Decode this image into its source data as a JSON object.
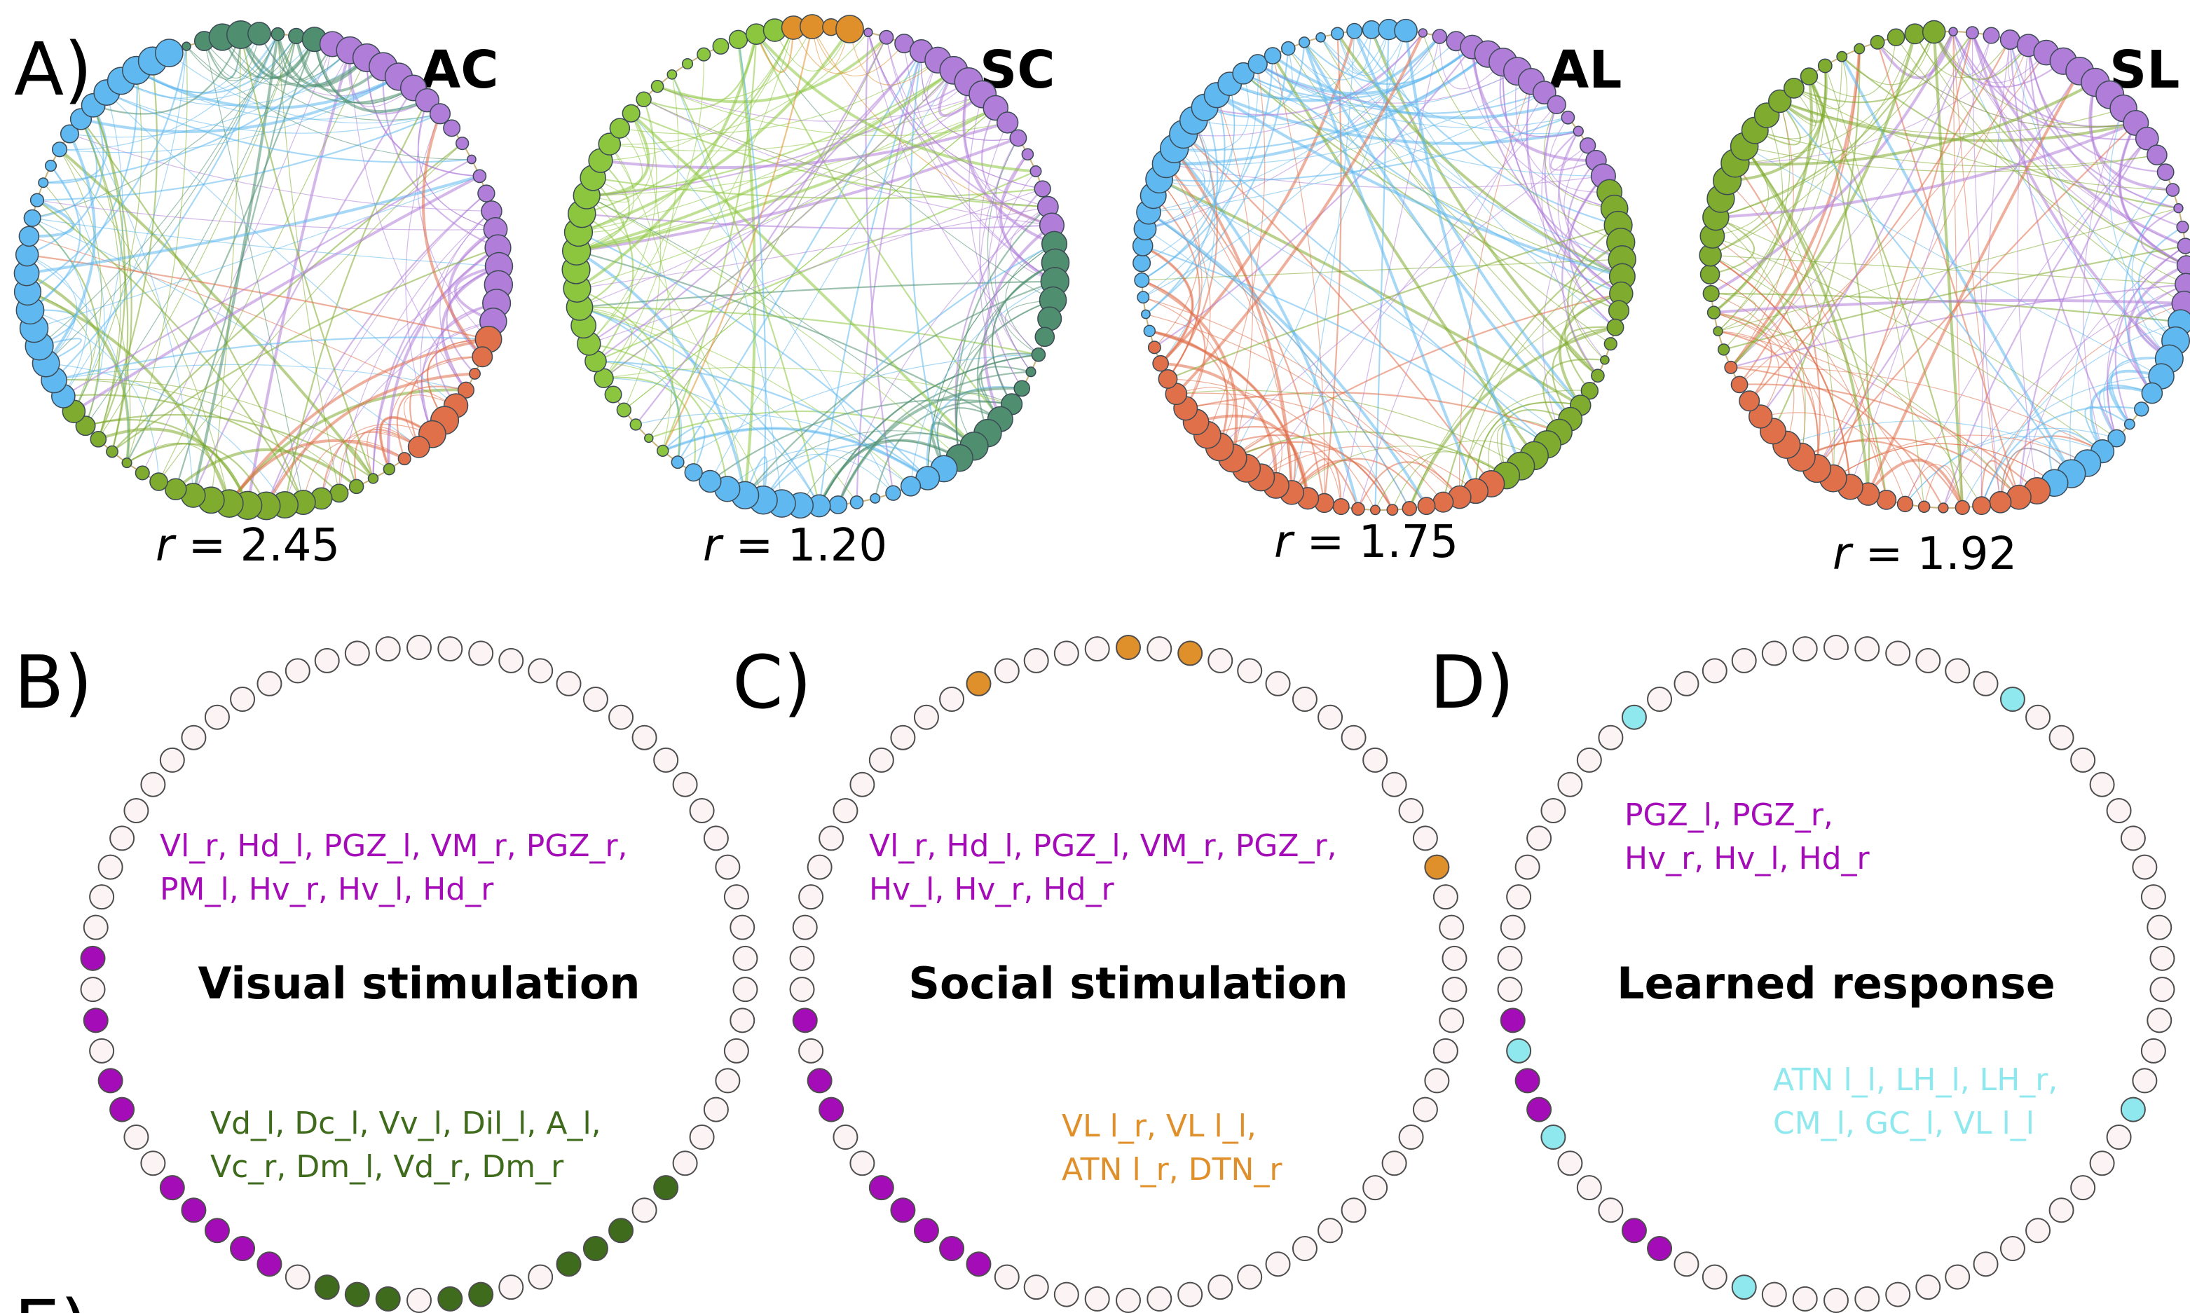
{
  "panels": {
    "A": {
      "label": "A)",
      "networks": [
        {
          "name": "AC",
          "r_label": "r",
          "r_value": "= 2.45",
          "groups": [
            {
              "color": "#4f8f6f",
              "count": 8
            },
            {
              "color": "#b07ed8",
              "count": 20
            },
            {
              "color": "#e0704a",
              "count": 9
            },
            {
              "color": "#7fab2e",
              "count": 20
            },
            {
              "color": "#5fb8ef",
              "count": 23
            }
          ]
        },
        {
          "name": "SC",
          "r_label": "r",
          "r_value": "= 1.20",
          "groups": [
            {
              "color": "#b07ed8",
              "count": 16
            },
            {
              "color": "#4f8f6f",
              "count": 14
            },
            {
              "color": "#5fb8ef",
              "count": 16
            },
            {
              "color": "#8cc63f",
              "count": 30
            },
            {
              "color": "#e0902a",
              "count": 4
            }
          ]
        },
        {
          "name": "AL",
          "r_label": "r",
          "r_value": "= 1.75",
          "groups": [
            {
              "color": "#b07ed8",
              "count": 15
            },
            {
              "color": "#7fab2e",
              "count": 20
            },
            {
              "color": "#e0704a",
              "count": 25
            },
            {
              "color": "#5fb8ef",
              "count": 28
            }
          ]
        },
        {
          "name": "SL",
          "r_label": "r",
          "r_value": "= 1.92",
          "groups": [
            {
              "color": "#b07ed8",
              "count": 22
            },
            {
              "color": "#5fb8ef",
              "count": 12
            },
            {
              "color": "#e0704a",
              "count": 20
            },
            {
              "color": "#7fab2e",
              "count": 24
            }
          ]
        }
      ]
    },
    "B": {
      "label": "B)",
      "title": "Visual stimulation",
      "regions_top": [
        "Vl_r, Hd_l, PGZ_l, VM_r, PGZ_r,",
        "PM_l, Hv_r, Hv_l, Hd_r"
      ],
      "regions_bottom": [
        "Vd_l, Dc_l, Vv_l, Dil_l, A_l,",
        "Vc_r, Dm_l, Vd_r, Dm_r"
      ],
      "color_top": "#a40cb8",
      "color_bottom": "#3f6b1c",
      "highlight_top": [
        16,
        18,
        20,
        21,
        24,
        25,
        26,
        27,
        28
      ],
      "highlight_bottom": [
        30,
        31,
        32,
        34,
        35,
        38,
        39,
        40,
        42
      ]
    },
    "C": {
      "label": "C)",
      "title": "Social stimulation",
      "regions_top": [
        "Vl_r, Hd_l, PGZ_l, VM_r, PGZ_r,",
        "Hv_l, Hv_r, Hd_r"
      ],
      "regions_bottom": [
        "VL l_r, VL l_l,",
        "ATN l_r, DTN_r"
      ],
      "color_top": "#a40cb8",
      "color_bottom": "#e0902a",
      "highlight_top": [
        18,
        20,
        21,
        24,
        25,
        26,
        27,
        28
      ],
      "highlight_bottom": [
        0,
        5,
        64,
        53
      ]
    },
    "D": {
      "label": "D)",
      "title": "Learned response",
      "regions_top": [
        "PGZ_l,  PGZ_r,",
        "Hv_r, Hv_l, Hd_r"
      ],
      "regions_bottom": [
        "ATN l_l, LH_l, LH_r,",
        "CM_l, GC_l, VL l_l"
      ],
      "color_top": "#a40cb8",
      "color_bottom": "#8fe8ee",
      "highlight_top": [
        18,
        20,
        21,
        26,
        27
      ],
      "highlight_bottom": [
        7,
        19,
        22,
        30,
        45,
        60
      ]
    },
    "E": {
      "label": "E)"
    }
  }
}
